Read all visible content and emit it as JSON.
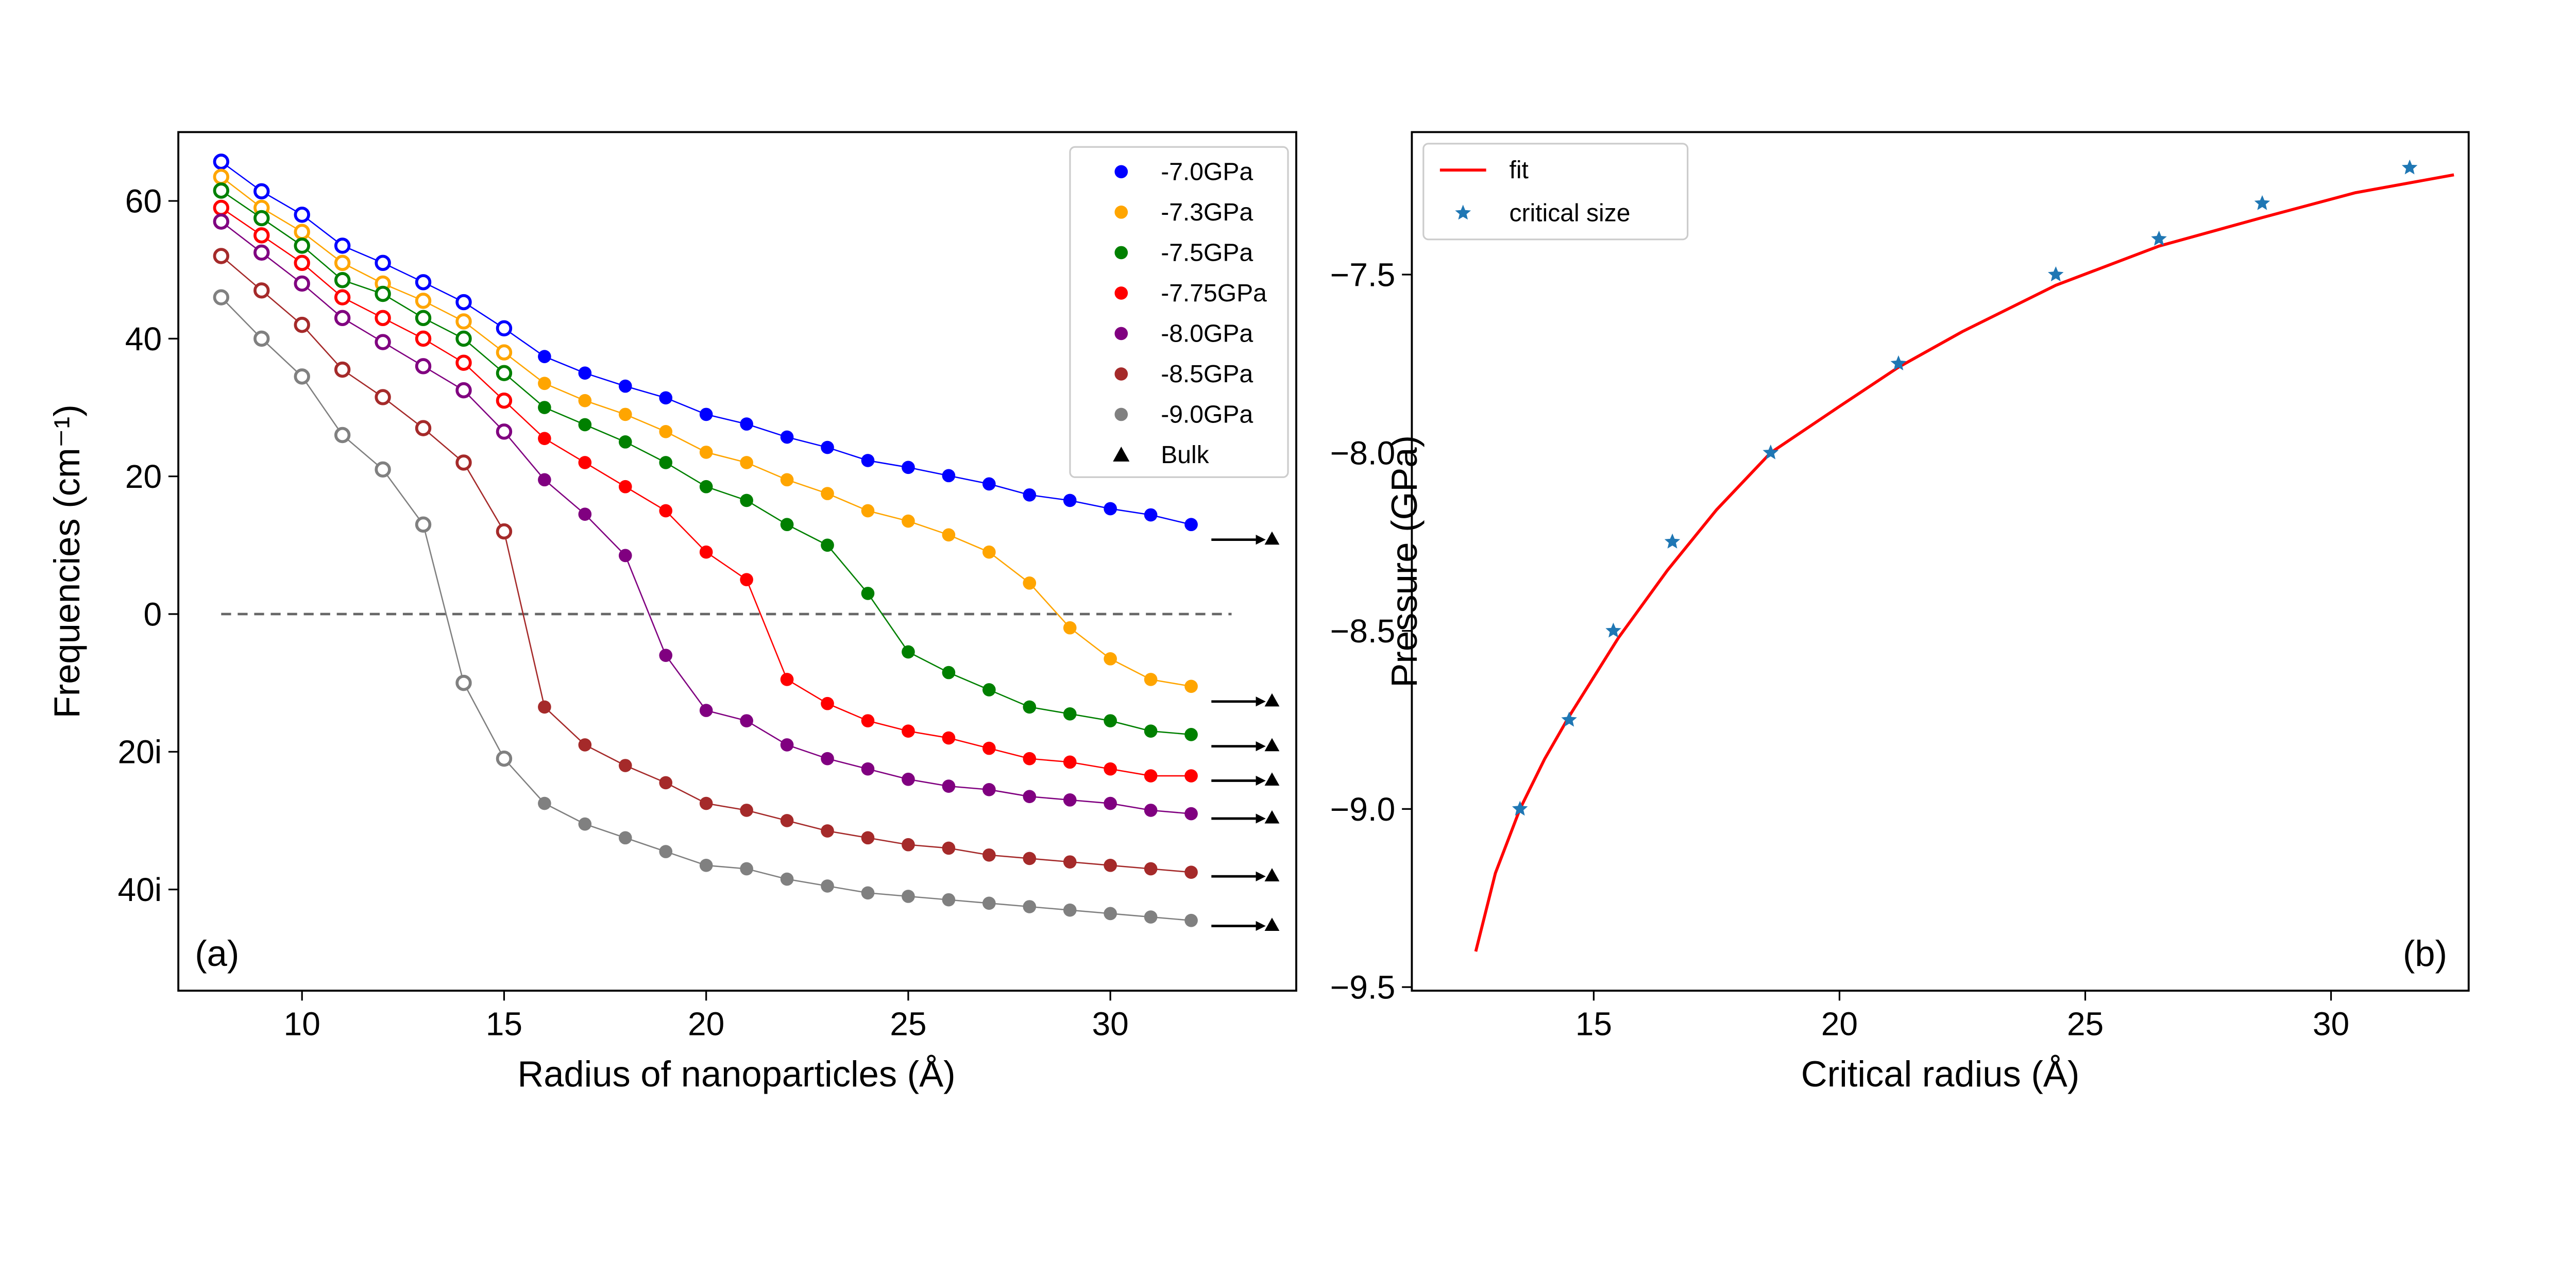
{
  "chart_data": [
    {
      "type": "line",
      "panel_label": "(a)",
      "xlabel": "Radius of nanoparticles (Å)",
      "ylabel": "Frequencies (cm⁻¹)",
      "xlim": [
        6.94,
        34.6
      ],
      "ylim": [
        -54.7,
        70
      ],
      "xticks": [
        10,
        15,
        20,
        25,
        30
      ],
      "yticks": [
        60,
        40,
        20,
        0,
        -20,
        -40
      ],
      "ytick_labels": [
        "60",
        "40",
        "20",
        "0",
        "20i",
        "40i"
      ],
      "note_markers": "open circles for x <= 15, filled for x >= 16",
      "legend_position": "top-right",
      "x": [
        8,
        9,
        10,
        11,
        12,
        13,
        14,
        15,
        16,
        17,
        18,
        19,
        20,
        21,
        22,
        23,
        24,
        25,
        26,
        27,
        28,
        29,
        30,
        31,
        32
      ],
      "series": [
        {
          "name": "-7.0GPa",
          "color": "#0000ff",
          "values": [
            65.7,
            61.4,
            58,
            53.5,
            51,
            48.2,
            45.3,
            41.5,
            37.4,
            35,
            33.1,
            31.4,
            29,
            27.6,
            25.7,
            24.2,
            22.3,
            21.3,
            20.1,
            18.9,
            17.3,
            16.5,
            15.3,
            14.4,
            13
          ],
          "bulk": 10.8
        },
        {
          "name": "-7.3GPa",
          "color": "#ffa500",
          "values": [
            63.5,
            59,
            55.5,
            51,
            48,
            45.5,
            42.5,
            38,
            33.5,
            31,
            29,
            26.5,
            23.5,
            22,
            19.5,
            17.5,
            15,
            13.5,
            11.5,
            9,
            4.5,
            -2,
            -6.5,
            -9.5,
            -10.5
          ],
          "bulk": -12.7
        },
        {
          "name": "-7.5GPa",
          "color": "#008000",
          "values": [
            61.5,
            57.5,
            53.5,
            48.5,
            46.5,
            43,
            40,
            35,
            30,
            27.5,
            25,
            22,
            18.5,
            16.5,
            13,
            10,
            3,
            -5.5,
            -8.5,
            -11,
            -13.5,
            -14.5,
            -15.5,
            -17,
            -17.5
          ],
          "bulk": -19.2
        },
        {
          "name": "-7.75GPa",
          "color": "#ff0000",
          "values": [
            59,
            55,
            51,
            46,
            43,
            40,
            36.5,
            31,
            25.5,
            22,
            18.5,
            15,
            9,
            5,
            -9.5,
            -13,
            -15.5,
            -17,
            -18,
            -19.5,
            -21,
            -21.5,
            -22.5,
            -23.5,
            -23.5
          ],
          "bulk": -24.2
        },
        {
          "name": "-8.0GPa",
          "color": "#800080",
          "values": [
            57,
            52.5,
            48,
            43,
            39.5,
            36,
            32.5,
            26.5,
            19.5,
            14.5,
            8.5,
            -6,
            -14,
            -15.5,
            -19,
            -21,
            -22.5,
            -24,
            -25,
            -25.5,
            -26.5,
            -27,
            -27.5,
            -28.5,
            -29
          ],
          "bulk": -29.7
        },
        {
          "name": "-8.5GPa",
          "color": "#a52a2a",
          "values": [
            52,
            47,
            42,
            35.5,
            31.5,
            27,
            22,
            12,
            -13.5,
            -19,
            -22,
            -24.5,
            -27.5,
            -28.5,
            -30,
            -31.5,
            -32.5,
            -33.5,
            -34,
            -35,
            -35.5,
            -36,
            -36.5,
            -37,
            -37.5
          ],
          "bulk": -38.1
        },
        {
          "name": "-9.0GPa",
          "color": "#808080",
          "values": [
            46,
            40,
            34.5,
            26,
            21,
            13,
            -10,
            -21,
            -27.5,
            -30.5,
            -32.5,
            -34.5,
            -36.5,
            -37,
            -38.5,
            -39.5,
            -40.5,
            -41,
            -41.5,
            -42,
            -42.5,
            -43,
            -43.5,
            -44,
            -44.5
          ],
          "bulk": -45.3
        }
      ],
      "bulk_legend": "Bulk",
      "bulk_x": 34
    },
    {
      "type": "scatter",
      "panel_label": "(b)",
      "xlabel": "Critical radius (Å)",
      "ylabel": "Pressure (GPa)",
      "xlim": [
        11.3,
        32.8
      ],
      "ylim": [
        -9.51,
        -7.1
      ],
      "xticks": [
        15,
        20,
        25,
        30
      ],
      "yticks": [
        -7.5,
        -8.0,
        -8.5,
        -9.0,
        -9.5
      ],
      "ytick_labels": [
        "−7.5",
        "−8.0",
        "−8.5",
        "−9.0",
        "−9.5"
      ],
      "legend_position": "top-left",
      "series": [
        {
          "name": "fit",
          "kind": "line",
          "color": "#ff0000",
          "x": [
            12.6,
            13.0,
            13.5,
            14.0,
            14.5,
            15.5,
            16.5,
            17.5,
            18.6,
            20,
            21.2,
            22.5,
            24.4,
            26.5,
            28.6,
            30.5,
            32.5
          ],
          "y": [
            -9.4,
            -9.18,
            -9.0,
            -8.86,
            -8.74,
            -8.52,
            -8.33,
            -8.16,
            -8.0,
            -7.87,
            -7.76,
            -7.66,
            -7.53,
            -7.42,
            -7.34,
            -7.27,
            -7.22
          ]
        },
        {
          "name": "critical size",
          "kind": "scatter",
          "marker": "star",
          "color": "#1f77b4",
          "x": [
            13.5,
            14.5,
            15.4,
            16.6,
            18.6,
            21.2,
            24.4,
            26.5,
            28.6,
            31.6
          ],
          "y": [
            -9.0,
            -8.75,
            -8.5,
            -8.25,
            -8.0,
            -7.75,
            -7.5,
            -7.4,
            -7.3,
            -7.2
          ]
        }
      ]
    }
  ]
}
